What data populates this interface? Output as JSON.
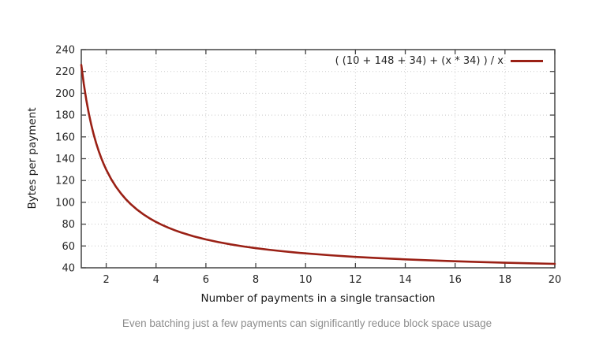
{
  "chart_data": {
    "type": "line",
    "title": "",
    "xlabel": "Number of payments in a single transaction",
    "ylabel": "Bytes per payment",
    "xlim": [
      1,
      20
    ],
    "ylim": [
      40,
      240
    ],
    "xticks": [
      2,
      4,
      6,
      8,
      10,
      12,
      14,
      16,
      18,
      20
    ],
    "yticks": [
      40,
      60,
      80,
      100,
      120,
      140,
      160,
      180,
      200,
      220,
      240
    ],
    "grid": "dotted-major",
    "legend": {
      "position": "top-right-inside",
      "entries": [
        "( (10 + 148 + 34) + (x * 34) ) / x"
      ]
    },
    "series": [
      {
        "name": "( (10 + 148 + 34) + (x * 34) ) / x",
        "color": "#9a2015",
        "points": [
          [
            1.0,
            226.0
          ],
          [
            1.1,
            208.55
          ],
          [
            1.2,
            194.0
          ],
          [
            1.3,
            181.69
          ],
          [
            1.4,
            171.14
          ],
          [
            1.5,
            162.0
          ],
          [
            1.6,
            154.0
          ],
          [
            1.7,
            146.94
          ],
          [
            1.8,
            140.67
          ],
          [
            1.9,
            135.05
          ],
          [
            2.0,
            130.0
          ],
          [
            2.2,
            121.27
          ],
          [
            2.4,
            114.0
          ],
          [
            2.6,
            107.85
          ],
          [
            2.8,
            102.57
          ],
          [
            3.0,
            98.0
          ],
          [
            3.25,
            93.08
          ],
          [
            3.5,
            88.86
          ],
          [
            3.75,
            85.2
          ],
          [
            4.0,
            82.0
          ],
          [
            4.25,
            79.18
          ],
          [
            4.5,
            76.67
          ],
          [
            4.75,
            74.42
          ],
          [
            5.0,
            72.4
          ],
          [
            5.5,
            68.91
          ],
          [
            6.0,
            66.0
          ],
          [
            6.5,
            63.54
          ],
          [
            7.0,
            61.43
          ],
          [
            7.5,
            59.6
          ],
          [
            8.0,
            58.0
          ],
          [
            8.5,
            56.59
          ],
          [
            9.0,
            55.33
          ],
          [
            9.5,
            54.21
          ],
          [
            10,
            53.2
          ],
          [
            11,
            51.45
          ],
          [
            12,
            50.0
          ],
          [
            13,
            48.77
          ],
          [
            14,
            47.71
          ],
          [
            15,
            46.8
          ],
          [
            16,
            46.0
          ],
          [
            17,
            45.29
          ],
          [
            18,
            44.67
          ],
          [
            19,
            44.11
          ],
          [
            20,
            43.6
          ]
        ]
      }
    ]
  },
  "caption": "Even batching just a few payments can significantly reduce block space usage",
  "colors": {
    "background": "#ffffff",
    "axis": "#444444",
    "grid": "#c8c8c8",
    "tick_text": "#262626",
    "caption_text": "#8d8d8d",
    "series": "#9a2015"
  }
}
